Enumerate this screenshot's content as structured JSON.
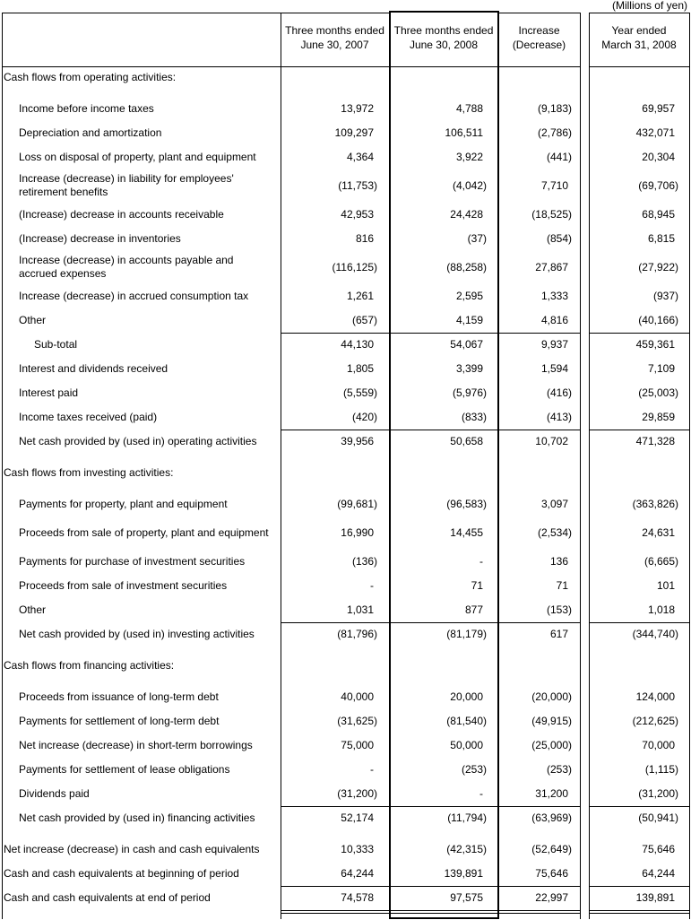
{
  "units": "(Millions of yen)",
  "columns": [
    {
      "line1": "Three months ended",
      "line2": "June 30, 2007"
    },
    {
      "line1": "Three months ended",
      "line2": "June 30, 2008"
    },
    {
      "line1": "Increase",
      "line2": "(Decrease)"
    },
    {
      "line1": "Year ended",
      "line2": "March 31, 2008"
    }
  ],
  "rows": [
    {
      "type": "section",
      "label": "Cash flows from operating activities:"
    },
    {
      "label": "Income before income taxes",
      "values": [
        "13,972",
        "4,788",
        "(9,183)",
        "69,957"
      ]
    },
    {
      "label": "Depreciation and amortization",
      "values": [
        "109,297",
        "106,511",
        "(2,786)",
        "432,071"
      ]
    },
    {
      "label": "Loss on disposal of property, plant and equipment",
      "values": [
        "4,364",
        "3,922",
        "(441)",
        "20,304"
      ]
    },
    {
      "label": "Increase (decrease) in liability for employees'",
      "label2": "retirement benefits",
      "values": [
        "(11,753)",
        "(4,042)",
        "7,710",
        "(69,706)"
      ]
    },
    {
      "label": "(Increase) decrease in accounts receivable",
      "values": [
        "42,953",
        "24,428",
        "(18,525)",
        "68,945"
      ]
    },
    {
      "label": "(Increase) decrease in inventories",
      "values": [
        "816",
        "(37)",
        "(854)",
        "6,815"
      ]
    },
    {
      "label": "Increase (decrease) in accounts payable and",
      "label2": "accrued expenses",
      "values": [
        "(116,125)",
        "(88,258)",
        "27,867",
        "(27,922)"
      ]
    },
    {
      "label": "Increase (decrease) in accrued consumption tax",
      "values": [
        "1,261",
        "2,595",
        "1,333",
        "(937)"
      ]
    },
    {
      "label": "Other",
      "values": [
        "(657)",
        "4,159",
        "4,816",
        "(40,166)"
      ]
    },
    {
      "type": "subtotal",
      "label": "Sub-total",
      "values": [
        "44,130",
        "54,067",
        "9,937",
        "459,361"
      ]
    },
    {
      "label": "Interest and dividends received",
      "values": [
        "1,805",
        "3,399",
        "1,594",
        "7,109"
      ]
    },
    {
      "label": "Interest paid",
      "values": [
        "(5,559)",
        "(5,976)",
        "(416)",
        "(25,003)"
      ]
    },
    {
      "label": "Income taxes received (paid)",
      "values": [
        "(420)",
        "(833)",
        "(413)",
        "29,859"
      ]
    },
    {
      "type": "total",
      "label": "Net cash provided by (used in) operating activities",
      "values": [
        "39,956",
        "50,658",
        "10,702",
        "471,328"
      ]
    },
    {
      "type": "section",
      "label": "Cash flows from investing activities:"
    },
    {
      "label": "Payments for property, plant and equipment",
      "values": [
        "(99,681)",
        "(96,583)",
        "3,097",
        "(363,826)"
      ]
    },
    {
      "label": "Proceeds from sale of property, plant and equipment",
      "values": [
        "16,990",
        "14,455",
        "(2,534)",
        "24,631"
      ]
    },
    {
      "label": "Payments for purchase of investment securities",
      "values": [
        "(136)",
        "-",
        "136",
        "(6,665)"
      ]
    },
    {
      "label": "Proceeds from sale of investment securities",
      "values": [
        "-",
        "71",
        "71",
        "101"
      ]
    },
    {
      "label": "Other",
      "values": [
        "1,031",
        "877",
        "(153)",
        "1,018"
      ]
    },
    {
      "type": "total",
      "label": "Net cash provided by (used in) investing activities",
      "values": [
        "(81,796)",
        "(81,179)",
        "617",
        "(344,740)"
      ]
    },
    {
      "type": "section",
      "label": "Cash flows from financing activities:"
    },
    {
      "label": "Proceeds from issuance of long-term debt",
      "values": [
        "40,000",
        "20,000",
        "(20,000)",
        "124,000"
      ]
    },
    {
      "label": "Payments for settlement of long-term debt",
      "values": [
        "(31,625)",
        "(81,540)",
        "(49,915)",
        "(212,625)"
      ]
    },
    {
      "label": "Net increase (decrease) in short-term borrowings",
      "values": [
        "75,000",
        "50,000",
        "(25,000)",
        "70,000"
      ]
    },
    {
      "label": "Payments for settlement of lease obligations",
      "values": [
        "-",
        "(253)",
        "(253)",
        "(1,115)"
      ]
    },
    {
      "label": "Dividends paid",
      "values": [
        "(31,200)",
        "-",
        "31,200",
        "(31,200)"
      ]
    },
    {
      "type": "total",
      "label": "Net cash provided by (used in) financing activities",
      "values": [
        "52,174",
        "(11,794)",
        "(63,969)",
        "(50,941)"
      ]
    },
    {
      "type": "grand",
      "label": "Net increase (decrease) in cash and cash equivalents",
      "values": [
        "10,333",
        "(42,315)",
        "(52,649)",
        "75,646"
      ]
    },
    {
      "type": "grand",
      "label": "Cash and cash equivalents at beginning of period",
      "values": [
        "64,244",
        "139,891",
        "75,646",
        "64,244"
      ]
    },
    {
      "type": "final",
      "label": "Cash and cash equivalents at end of period",
      "values": [
        "74,578",
        "97,575",
        "22,997",
        "139,891"
      ]
    }
  ]
}
